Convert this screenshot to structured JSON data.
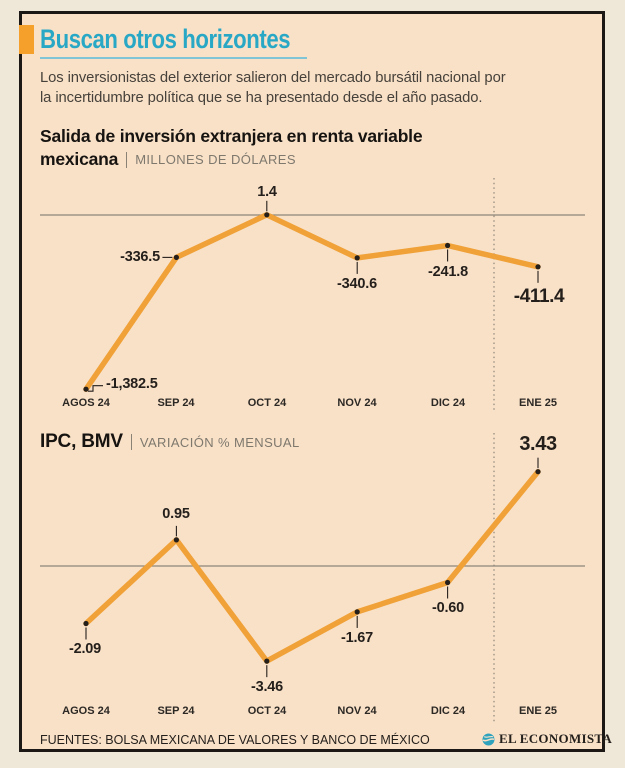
{
  "header": {
    "title": "Buscan otros horizontes",
    "subtitle_line1": "Los inversionistas del exterior salieron del mercado bursátil nacional por",
    "subtitle_line2": "la incertidumbre política que se ha presentado desde el año pasado."
  },
  "chart_data": [
    {
      "type": "line",
      "title": "Salida de inversión extranjera en renta variable mexicana",
      "title_line1": "Salida de inversión extranjera en renta variable",
      "title_line2": "mexicana",
      "units_label": "MILLONES DE DÓLARES",
      "categories": [
        "AGOS 24",
        "SEP 24",
        "OCT 24",
        "NOV 24",
        "DIC 24",
        "ENE 25"
      ],
      "values": [
        -1382.5,
        -336.5,
        1.4,
        -340.6,
        -241.8,
        -411.4
      ],
      "labels": [
        "-1,382.5",
        "-336.5",
        "1.4",
        "-340.6",
        "-241.8",
        "-411.4"
      ],
      "baseline_value": 0,
      "highlighted_category": "ENE 25",
      "legend": "none",
      "grid": "zero-baseline-only"
    },
    {
      "type": "line",
      "title": "IPC, BMV",
      "units_label": "VARIACIÓN % MENSUAL",
      "categories": [
        "AGOS 24",
        "SEP 24",
        "OCT 24",
        "NOV 24",
        "DIC 24",
        "ENE 25"
      ],
      "values": [
        -2.09,
        0.95,
        -3.46,
        -1.67,
        -0.6,
        3.43
      ],
      "labels": [
        "-2.09",
        "0.95",
        "-3.46",
        "-1.67",
        "-0.60",
        "3.43"
      ],
      "baseline_value": 0,
      "highlighted_category": "ENE 25",
      "legend": "none",
      "grid": "zero-baseline-only"
    }
  ],
  "footer": {
    "sources": "FUENTES: BOLSA MEXICANA DE VALORES Y BANCO DE MÉXICO",
    "brand": "EL ECONOMISTA"
  },
  "colors": {
    "panel_background": "#f9e1c8",
    "outer_background": "#efe7d7",
    "frame_border": "#1b1815",
    "line_orange": "#f0a138",
    "accent_orange": "#f5a02b",
    "title_teal": "#29a8c6",
    "underline_teal": "#7fc5d6",
    "axis_gray": "#8f8678",
    "text_dark": "#241f1b",
    "text_gray": "#7e786d",
    "logo_teal": "#2fa3bd"
  }
}
